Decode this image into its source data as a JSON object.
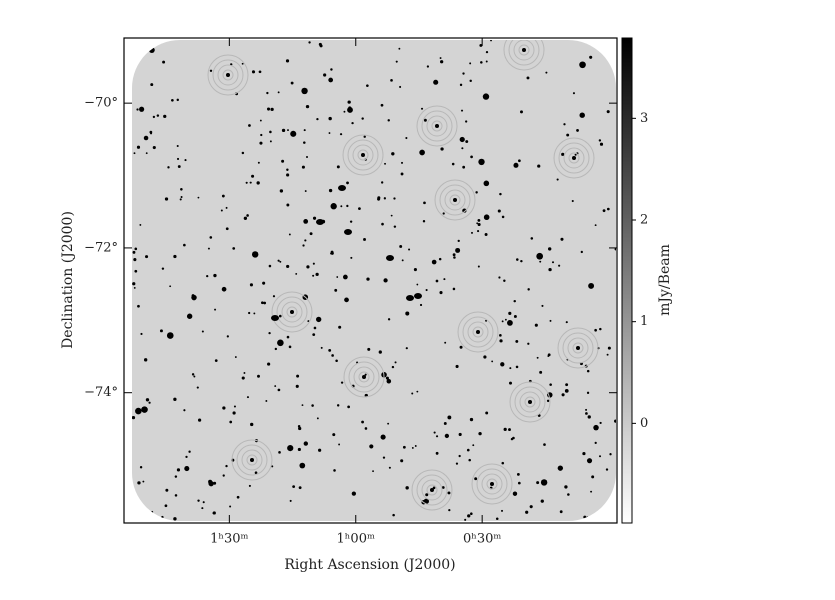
{
  "chart_data": {
    "type": "image",
    "x_label": "Right Ascension (J2000)",
    "y_label": "Declination (J2000)",
    "xlim": [
      115,
      -2
    ],
    "xticks": [
      {
        "value": 90,
        "label": "1ʰ30ᵐ"
      },
      {
        "value": 60,
        "label": "1ʰ00ᵐ"
      },
      {
        "value": 30,
        "label": "0ʰ30ᵐ"
      }
    ],
    "ylim": [
      -75.8,
      -69.1
    ],
    "yticks": [
      {
        "value": -70,
        "label": "−70°"
      },
      {
        "value": -72,
        "label": "−72°"
      },
      {
        "value": -74,
        "label": "−74°"
      }
    ],
    "colorbar": {
      "label": "mJy/Beam",
      "lim": [
        -0.98,
        3.79
      ],
      "ticks": [
        0,
        1,
        2,
        3
      ],
      "colors": [
        "#ffffff",
        "#000000"
      ]
    }
  }
}
